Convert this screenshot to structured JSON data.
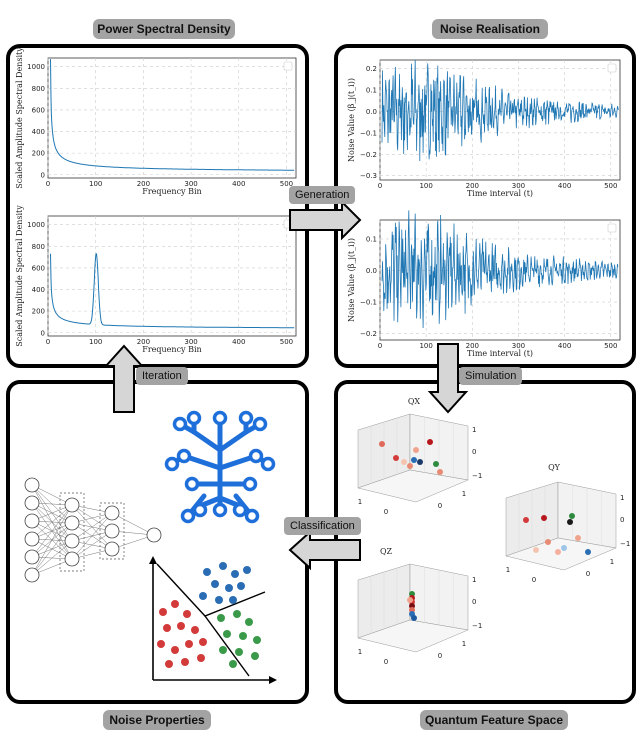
{
  "headers": {
    "psd": "Power Spectral Density",
    "noise_realisation": "Noise Realisation",
    "noise_properties": "Noise Properties",
    "quantum_feature_space": "Quantum Feature Space"
  },
  "arrows": {
    "generation": "Generation",
    "simulation": "Simulation",
    "iteration": "Iteration",
    "classification": "Classification"
  },
  "psd_plots": [
    {
      "ylabel": "Scaled Amplitude Spectral Density",
      "xlabel": "Frequency Bin",
      "yticks": [
        "1000",
        "800",
        "600",
        "400",
        "200",
        "0"
      ],
      "xticks": [
        "0",
        "100",
        "200",
        "300",
        "400",
        "500"
      ]
    },
    {
      "ylabel": "Scaled Amplitude Spectral Density",
      "xlabel": "Frequency Bin",
      "yticks": [
        "1000",
        "800",
        "600",
        "400",
        "200",
        "0"
      ],
      "xticks": [
        "0",
        "100",
        "200",
        "300",
        "400",
        "500"
      ]
    }
  ],
  "noise_plots": [
    {
      "ylabel": "Noise Value (β_j(t_i))",
      "xlabel": "Time interval (t)",
      "yticks": [
        "0.2",
        "0.1",
        "0.0",
        "−0.1",
        "−0.2",
        "−0.3"
      ],
      "xticks": [
        "0",
        "100",
        "200",
        "300",
        "400",
        "500"
      ]
    },
    {
      "ylabel": "Noise Value (β_j(t_i))",
      "xlabel": "Time interval (t)",
      "yticks": [
        "0.1",
        "0.0",
        "−0.1",
        "−0.2"
      ],
      "xticks": [
        "0",
        "100",
        "200",
        "300",
        "400",
        "500"
      ]
    }
  ],
  "quantum_plots": [
    {
      "title": "Q_X"
    },
    {
      "title": "Q_Y"
    },
    {
      "title": "Q_Z"
    }
  ],
  "colors": {
    "line": "#1f77b4",
    "panel_border": "#000000",
    "pill": "#a3a3a3",
    "tree": "#1e6fd9",
    "cluster_blue": "#2a6db5",
    "cluster_red": "#d33a3a",
    "cluster_green": "#3a9a4a"
  }
}
